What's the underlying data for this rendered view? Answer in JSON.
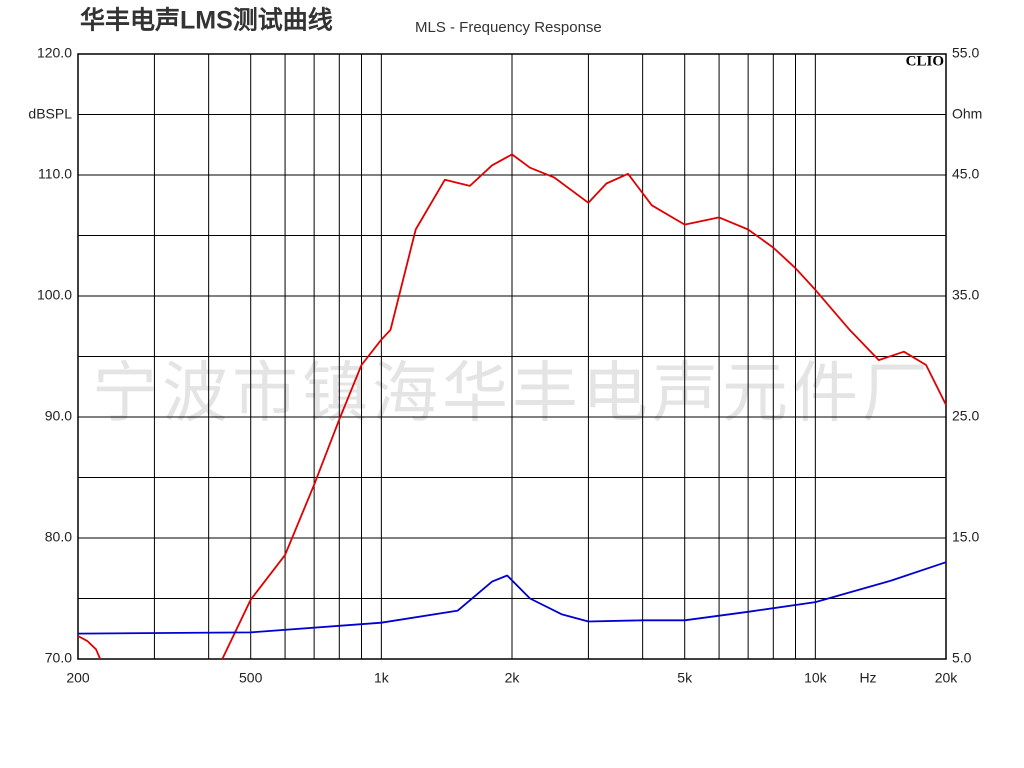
{
  "chart_data": {
    "type": "line",
    "title": "华丰电声LMS测试曲线",
    "subtitle": "MLS - Frequency Response",
    "annotation": "CLIO",
    "watermark": "宁波市镇海华丰电声元件厂",
    "xlabel": "Hz",
    "ylabel": "dBSPL",
    "y2label": "Ohm",
    "xscale": "log",
    "xlim": [
      200,
      20000
    ],
    "xticks": [
      200,
      500,
      {
        "value": 1000,
        "label": "1k"
      },
      {
        "value": 2000,
        "label": "2k"
      },
      {
        "value": 5000,
        "label": "5k"
      },
      {
        "value": 10000,
        "label": "10k"
      },
      {
        "value": 20000,
        "label": "20k"
      }
    ],
    "xgrid": [
      200,
      300,
      400,
      500,
      600,
      700,
      800,
      900,
      1000,
      2000,
      3000,
      4000,
      5000,
      6000,
      7000,
      8000,
      9000,
      10000,
      20000
    ],
    "ylim": [
      70,
      120
    ],
    "yticks": [
      {
        "value": 70,
        "label": "70.0"
      },
      {
        "value": 80,
        "label": "80.0"
      },
      {
        "value": 90,
        "label": "90.0"
      },
      {
        "value": 100,
        "label": "100.0"
      },
      {
        "value": 110,
        "label": "110.0"
      },
      {
        "value": 120,
        "label": "120.0"
      }
    ],
    "ygrid": [
      70,
      75,
      80,
      85,
      90,
      95,
      100,
      105,
      110,
      115,
      120
    ],
    "y2lim": [
      5,
      55
    ],
    "y2ticks": [
      {
        "value": 5,
        "label": "5.0"
      },
      {
        "value": 15,
        "label": "15.0"
      },
      {
        "value": 25,
        "label": "25.0"
      },
      {
        "value": 35,
        "label": "35.0"
      },
      {
        "value": 45,
        "label": "45.0"
      },
      {
        "value": 55,
        "label": "55.0"
      }
    ],
    "grid": true,
    "series": [
      {
        "color": "#e00000",
        "x": [
          200,
          210,
          220,
          225,
          null,
          430,
          500,
          600,
          700,
          800,
          900,
          1000,
          1050,
          1200,
          1400,
          1600,
          1800,
          2000,
          2200,
          2500,
          3000,
          3300,
          3700,
          4200,
          5000,
          6000,
          7000,
          8000,
          9000,
          10000,
          12000,
          14000,
          16000,
          18000,
          20000
        ],
        "values": [
          71.9,
          71.5,
          70.8,
          70.0,
          null,
          70.0,
          74.9,
          78.6,
          84.4,
          89.8,
          94.3,
          96.4,
          97.2,
          105.5,
          109.6,
          109.1,
          110.8,
          111.7,
          110.6,
          109.8,
          107.7,
          109.3,
          110.1,
          107.5,
          105.9,
          106.5,
          105.5,
          104.0,
          102.3,
          100.5,
          97.2,
          94.7,
          95.4,
          94.3,
          91.0
        ]
      },
      {
        "color": "#0000d0",
        "axis": "y2",
        "x": [
          200,
          500,
          1000,
          1500,
          1800,
          1950,
          2200,
          2600,
          3000,
          4000,
          5000,
          7000,
          10000,
          15000,
          20000
        ],
        "values": [
          7.1,
          7.2,
          8.0,
          9.0,
          11.4,
          11.9,
          10.0,
          8.7,
          8.1,
          8.2,
          8.2,
          8.9,
          9.7,
          11.5,
          13.0
        ]
      }
    ]
  }
}
